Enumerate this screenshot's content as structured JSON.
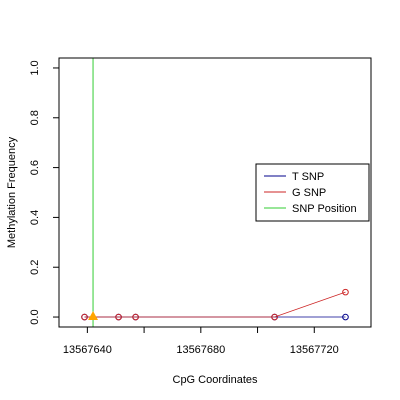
{
  "chart_data": {
    "type": "scatter",
    "xlabel": "CpG Coordinates",
    "ylabel": "Methylation Frequency",
    "xlim": [
      13567630,
      13567740
    ],
    "ylim": [
      -0.04,
      1.04
    ],
    "x_ticks": [
      13567640,
      13567680,
      13567720
    ],
    "x_tick_labels": [
      "13567640",
      "13567680",
      "13567720"
    ],
    "y_ticks": [
      0.0,
      0.2,
      0.4,
      0.6,
      0.8,
      1.0
    ],
    "y_tick_labels": [
      "0.0",
      "0.2",
      "0.4",
      "0.6",
      "0.8",
      "1.0"
    ],
    "grid": false,
    "legend_position": "right",
    "series": [
      {
        "name": "T SNP",
        "color": "#00008B",
        "x": [
          13567639,
          13567651,
          13567657,
          13567706,
          13567731
        ],
        "y": [
          0.0,
          0.0,
          0.0,
          0.0,
          0.0
        ]
      },
      {
        "name": "G SNP",
        "color": "#CD2626",
        "x": [
          13567639,
          13567651,
          13567657,
          13567706,
          13567731
        ],
        "y": [
          0.0,
          0.0,
          0.0,
          0.0,
          0.1
        ]
      }
    ],
    "snp": {
      "name": "SNP Position",
      "color": "#32CD32",
      "marker_color": "#FFA500",
      "x": 13567642
    },
    "legend": [
      {
        "label": "T SNP",
        "color": "#00008B"
      },
      {
        "label": "G SNP",
        "color": "#CD2626"
      },
      {
        "label": "SNP Position",
        "color": "#32CD32"
      }
    ]
  }
}
